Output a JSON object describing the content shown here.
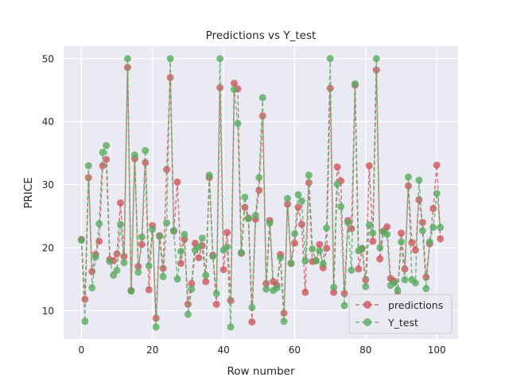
{
  "chart_data": {
    "type": "line",
    "title": "Predictions vs Y_test",
    "xlabel": "Row number",
    "ylabel": "PRICE",
    "xlim": [
      -5,
      106
    ],
    "ylim": [
      5.5,
      52
    ],
    "xticks": [
      0,
      20,
      40,
      60,
      80,
      100
    ],
    "yticks": [
      10,
      20,
      30,
      40,
      50
    ],
    "grid": true,
    "legend_position": "lower-right",
    "series": [
      {
        "name": "predictions",
        "color": "#d1565c",
        "linestyle": "dashed",
        "marker": "circle",
        "x": [
          0,
          1,
          2,
          3,
          4,
          5,
          6,
          7,
          8,
          9,
          10,
          11,
          12,
          13,
          14,
          15,
          16,
          17,
          18,
          19,
          20,
          21,
          22,
          23,
          24,
          25,
          26,
          27,
          28,
          29,
          30,
          31,
          32,
          33,
          34,
          35,
          36,
          37,
          38,
          39,
          40,
          41,
          42,
          43,
          44,
          45,
          46,
          47,
          48,
          49,
          50,
          51,
          52,
          53,
          54,
          55,
          56,
          57,
          58,
          59,
          60,
          61,
          62,
          63,
          64,
          65,
          66,
          67,
          68,
          69,
          70,
          71,
          72,
          73,
          74,
          75,
          76,
          77,
          78,
          79,
          80,
          81,
          82,
          83,
          84,
          85,
          86,
          87,
          88,
          89,
          90,
          91,
          92,
          93,
          94,
          95,
          96,
          97,
          98,
          99,
          100,
          101
        ],
        "values": [
          21.3,
          11.8,
          31.1,
          16.2,
          18.9,
          21.0,
          33.0,
          34.0,
          18.1,
          17.9,
          19.0,
          27.1,
          18.6,
          48.6,
          13.2,
          34.1,
          17.0,
          20.5,
          33.5,
          13.3,
          23.5,
          8.8,
          21.9,
          16.7,
          32.4,
          47.0,
          22.6,
          30.4,
          17.5,
          21.3,
          11.0,
          14.3,
          20.7,
          18.4,
          20.3,
          14.6,
          31.1,
          18.8,
          11.0,
          45.4,
          16.5,
          22.4,
          11.6,
          46.1,
          45.2,
          19.1,
          26.4,
          24.7,
          8.2,
          24.5,
          29.1,
          40.9,
          14.3,
          24.3,
          14.6,
          14.0,
          18.9,
          9.6,
          26.9,
          17.5,
          20.7,
          26.4,
          23.7,
          12.9,
          30.3,
          17.8,
          17.9,
          20.5,
          16.8,
          19.9,
          45.3,
          12.9,
          32.8,
          30.6,
          12.7,
          24.3,
          23.0,
          45.8,
          16.6,
          19.8,
          14.9,
          33.0,
          21.0,
          48.2,
          18.2,
          22.6,
          23.3,
          15.1,
          14.7,
          12.5,
          22.3,
          16.6,
          29.8,
          20.8,
          19.6,
          27.6,
          24.0,
          15.3,
          20.6,
          26.2,
          33.1,
          21.4
        ]
      },
      {
        "name": "Y_test",
        "color": "#5aab61",
        "linestyle": "dashed",
        "marker": "circle",
        "x": [
          0,
          1,
          2,
          3,
          4,
          5,
          6,
          7,
          8,
          9,
          10,
          11,
          12,
          13,
          14,
          15,
          16,
          17,
          18,
          19,
          20,
          21,
          22,
          23,
          24,
          25,
          26,
          27,
          28,
          29,
          30,
          31,
          32,
          33,
          34,
          35,
          36,
          37,
          38,
          39,
          40,
          41,
          42,
          43,
          44,
          45,
          46,
          47,
          48,
          49,
          50,
          51,
          52,
          53,
          54,
          55,
          56,
          57,
          58,
          59,
          60,
          61,
          62,
          63,
          64,
          65,
          66,
          67,
          68,
          69,
          70,
          71,
          72,
          73,
          74,
          75,
          76,
          77,
          78,
          79,
          80,
          81,
          82,
          83,
          84,
          85,
          86,
          87,
          88,
          89,
          90,
          91,
          92,
          93,
          94,
          95,
          96,
          97,
          98,
          99,
          100,
          101
        ],
        "values": [
          21.2,
          8.3,
          33.0,
          13.6,
          18.5,
          23.8,
          35.1,
          36.2,
          17.8,
          15.6,
          16.4,
          23.7,
          17.6,
          50.0,
          13.1,
          34.7,
          16.1,
          21.7,
          35.4,
          17.1,
          22.9,
          7.4,
          21.8,
          15.4,
          23.9,
          50.0,
          22.7,
          15.0,
          19.4,
          22.1,
          9.4,
          13.4,
          19.6,
          20.1,
          21.5,
          15.6,
          31.5,
          18.6,
          12.7,
          50.0,
          19.6,
          20.1,
          7.4,
          45.1,
          39.7,
          19.2,
          28.0,
          24.6,
          10.5,
          25.1,
          31.1,
          43.8,
          13.4,
          23.9,
          13.2,
          13.6,
          18.4,
          8.3,
          27.8,
          17.5,
          22.2,
          28.4,
          27.4,
          17.9,
          31.5,
          19.8,
          17.9,
          19.5,
          17.4,
          23.1,
          50.0,
          13.7,
          30.1,
          26.5,
          10.8,
          24.0,
          16.4,
          46.0,
          19.5,
          19.9,
          13.8,
          23.6,
          22.3,
          50.0,
          20.0,
          22.5,
          22.1,
          14.0,
          14.4,
          13.2,
          20.9,
          14.9,
          31.2,
          14.9,
          14.4,
          30.7,
          22.7,
          13.5,
          20.9,
          23.2,
          28.6,
          23.2
        ]
      }
    ]
  }
}
